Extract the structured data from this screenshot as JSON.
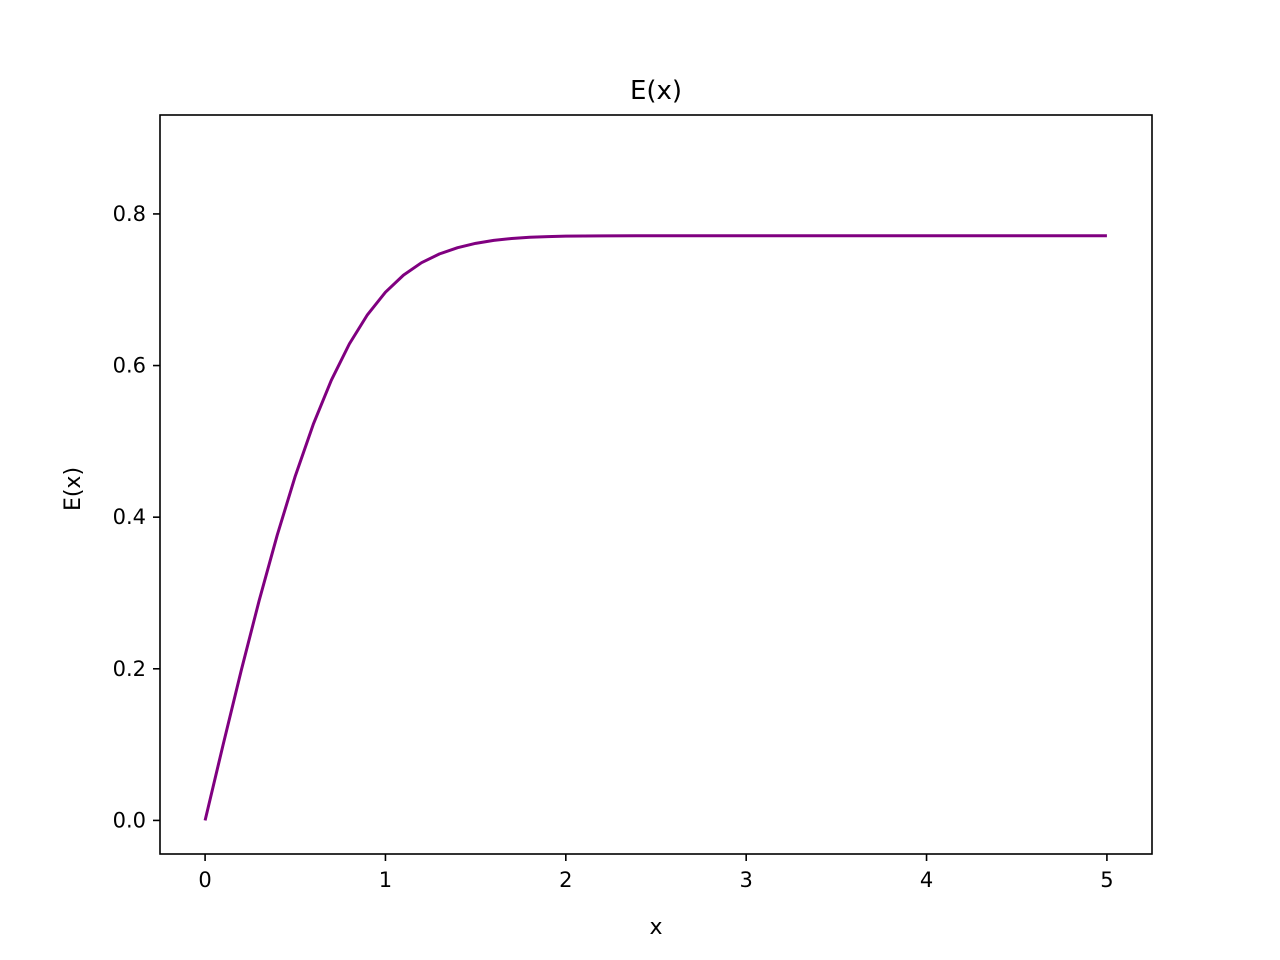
{
  "chart_data": {
    "type": "line",
    "title": "E(x)",
    "xlabel": "x",
    "ylabel": "E(x)",
    "xlim": [
      -0.25,
      5.25
    ],
    "ylim": [
      -0.0443,
      0.9305
    ],
    "xticks": [
      0,
      1,
      2,
      3,
      4,
      5
    ],
    "xtick_labels": [
      "0",
      "1",
      "2",
      "3",
      "4",
      "5"
    ],
    "yticks": [
      0.0,
      0.2,
      0.4,
      0.6,
      0.8
    ],
    "ytick_labels": [
      "0.0",
      "0.2",
      "0.4",
      "0.6",
      "0.8"
    ],
    "grid": false,
    "series": [
      {
        "name": "E(x)",
        "color": "#800080",
        "x": [
          0,
          0.1,
          0.2,
          0.3,
          0.4,
          0.5,
          0.6,
          0.7,
          0.8,
          0.9,
          1.0,
          1.1,
          1.2,
          1.3,
          1.4,
          1.5,
          1.6,
          1.7,
          1.8,
          1.9,
          2.0,
          2.2,
          2.4,
          2.6,
          2.8,
          3.0,
          3.5,
          4.0,
          4.5,
          5.0
        ],
        "y": [
          0,
          0.0999,
          0.1974,
          0.2903,
          0.3764,
          0.4542,
          0.5226,
          0.5807,
          0.6286,
          0.667,
          0.6968,
          0.7193,
          0.7357,
          0.7473,
          0.7555,
          0.7612,
          0.7651,
          0.7676,
          0.7692,
          0.7701,
          0.7707,
          0.7711,
          0.7712,
          0.7712,
          0.7712,
          0.7712,
          0.7712,
          0.7712,
          0.7712,
          0.7712
        ]
      }
    ]
  }
}
